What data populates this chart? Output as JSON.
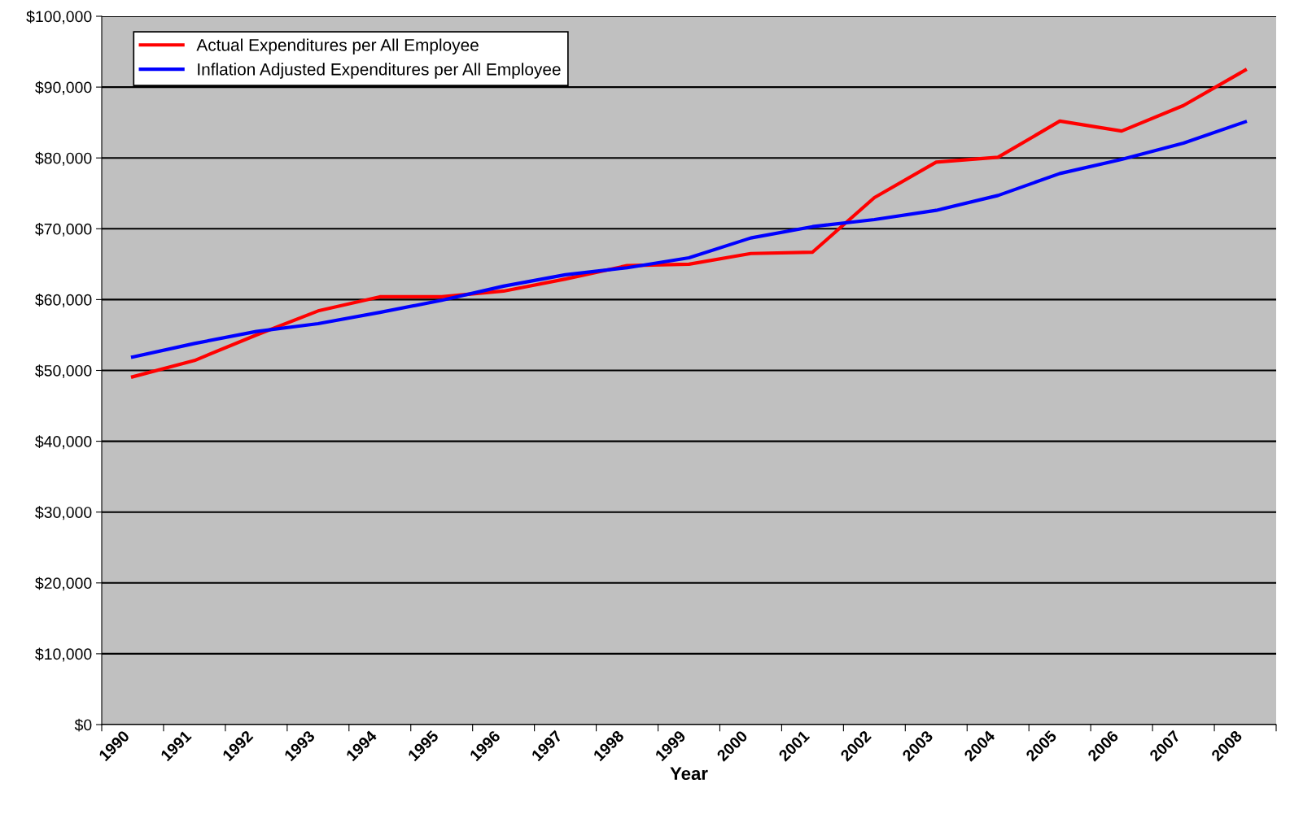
{
  "chart_data": {
    "type": "line",
    "xlabel": "Year",
    "categories": [
      "1990",
      "1991",
      "1992",
      "1993",
      "1994",
      "1995",
      "1996",
      "1997",
      "1998",
      "1999",
      "2000",
      "2001",
      "2002",
      "2003",
      "2004",
      "2005",
      "2006",
      "2007",
      "2008"
    ],
    "series": [
      {
        "name": "Actual Expenditures per All Employee",
        "color": "#ff0000",
        "values": [
          49100,
          51400,
          55000,
          58400,
          60400,
          60400,
          61200,
          62900,
          64800,
          65000,
          66500,
          66700,
          74400,
          79400,
          80100,
          85200,
          83800,
          87400,
          92400
        ]
      },
      {
        "name": "Inflation Adjusted Expenditures per All Employee",
        "color": "#0000ff",
        "values": [
          51900,
          53800,
          55500,
          56600,
          58200,
          59900,
          61900,
          63500,
          64500,
          65900,
          68700,
          70300,
          71300,
          72600,
          74700,
          77800,
          79800,
          82100,
          85100
        ]
      }
    ],
    "ylim": [
      0,
      100000
    ],
    "yticks": [
      {
        "value": 0,
        "label": "$0"
      },
      {
        "value": 10000,
        "label": "$10,000"
      },
      {
        "value": 20000,
        "label": "$20,000"
      },
      {
        "value": 30000,
        "label": "$30,000"
      },
      {
        "value": 40000,
        "label": "$40,000"
      },
      {
        "value": 50000,
        "label": "$50,000"
      },
      {
        "value": 60000,
        "label": "$60,000"
      },
      {
        "value": 70000,
        "label": "$70,000"
      },
      {
        "value": 80000,
        "label": "$80,000"
      },
      {
        "value": 90000,
        "label": "$90,000"
      },
      {
        "value": 100000,
        "label": "$100,000"
      }
    ],
    "grid": "y",
    "legend": "top left",
    "marker": "none",
    "line_style": "solid"
  }
}
